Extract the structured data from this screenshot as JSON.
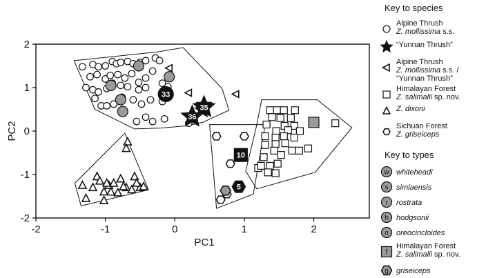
{
  "chart_data": {
    "type": "scatter",
    "xlabel": "PC1",
    "ylabel": "PC2",
    "xlim": [
      -2,
      2.8
    ],
    "ylim": [
      -2,
      2
    ],
    "xticks": [
      -2,
      -1,
      0,
      1,
      2
    ],
    "yticks": [
      -2,
      -1,
      0,
      1,
      2
    ],
    "grid": false,
    "legend_position": "right",
    "series": [
      {
        "name": "Alpine Thrush Z. mollissima s.s.",
        "marker": "circle",
        "points": [
          [
            -1.33,
            1.48
          ],
          [
            -1.18,
            1.53
          ],
          [
            -1.1,
            1.48
          ],
          [
            -1.0,
            1.5
          ],
          [
            -0.9,
            1.6
          ],
          [
            -0.84,
            1.55
          ],
          [
            -0.78,
            1.58
          ],
          [
            -0.68,
            1.6
          ],
          [
            -0.6,
            1.55
          ],
          [
            -0.5,
            1.58
          ],
          [
            -0.42,
            1.62
          ],
          [
            -0.28,
            1.68
          ],
          [
            -0.22,
            1.62
          ],
          [
            -1.22,
            1.25
          ],
          [
            -1.12,
            1.3
          ],
          [
            -1.0,
            1.2
          ],
          [
            -0.93,
            1.28
          ],
          [
            -0.82,
            1.3
          ],
          [
            -0.72,
            1.22
          ],
          [
            -0.62,
            1.32
          ],
          [
            -0.52,
            1.12
          ],
          [
            -0.42,
            1.22
          ],
          [
            -0.32,
            1.38
          ],
          [
            -0.18,
            1.1
          ],
          [
            -0.1,
            1.02
          ],
          [
            -1.28,
            1.0
          ],
          [
            -1.18,
            0.95
          ],
          [
            -1.1,
            0.9
          ],
          [
            -0.98,
            0.98
          ],
          [
            -0.9,
            1.1
          ],
          [
            -0.78,
            1.05
          ],
          [
            -0.68,
            1.02
          ],
          [
            -0.52,
            0.95
          ],
          [
            -0.42,
            1.0
          ],
          [
            -1.15,
            0.75
          ],
          [
            -1.06,
            0.58
          ],
          [
            -0.98,
            0.58
          ],
          [
            -0.88,
            0.62
          ],
          [
            -0.76,
            0.78
          ],
          [
            -0.6,
            0.72
          ],
          [
            -0.48,
            0.62
          ],
          [
            -0.35,
            0.72
          ],
          [
            -0.18,
            0.68
          ],
          [
            -0.55,
            0.22
          ],
          [
            -0.42,
            0.32
          ],
          [
            -0.32,
            0.22
          ],
          [
            -0.15,
            0.28
          ],
          [
            0.2,
            0.18
          ]
        ]
      },
      {
        "name": "Yunnan Thrush",
        "marker": "star",
        "points": [
          [
            0.4,
            0.48
          ],
          [
            0.24,
            0.35
          ],
          [
            0.42,
            0.6
          ]
        ]
      },
      {
        "name": "Alpine Thrush Z. mollissima s.s. / Yunnan Thrush",
        "marker": "triangle-left",
        "points": [
          [
            0.88,
            0.85
          ],
          [
            0.2,
            0.88
          ],
          [
            -0.08,
            1.45
          ]
        ]
      },
      {
        "name": "Himalayan Forest Z. salimalii sp. nov.",
        "marker": "square",
        "points": [
          [
            1.37,
            0.48
          ],
          [
            1.47,
            0.48
          ],
          [
            1.57,
            0.48
          ],
          [
            1.73,
            0.48
          ],
          [
            1.4,
            0.32
          ],
          [
            1.52,
            0.3
          ],
          [
            1.67,
            0.3
          ],
          [
            1.32,
            0.15
          ],
          [
            1.58,
            0.12
          ],
          [
            1.72,
            0.12
          ],
          [
            2.31,
            0.18
          ],
          [
            1.46,
            0.0
          ],
          [
            1.63,
            0.02
          ],
          [
            1.8,
            0.0
          ],
          [
            1.3,
            -0.12
          ],
          [
            1.45,
            -0.15
          ],
          [
            1.57,
            -0.12
          ],
          [
            1.72,
            -0.15
          ],
          [
            1.3,
            -0.32
          ],
          [
            1.45,
            -0.3
          ],
          [
            1.59,
            -0.28
          ],
          [
            1.79,
            -0.45
          ],
          [
            1.92,
            -0.4
          ],
          [
            1.43,
            -0.45
          ],
          [
            1.28,
            -0.6
          ],
          [
            1.53,
            -0.55
          ],
          [
            1.69,
            -0.45
          ],
          [
            1.37,
            -0.8
          ],
          [
            1.2,
            -0.85
          ],
          [
            1.34,
            -0.95
          ],
          [
            1.48,
            -0.75
          ],
          [
            1.24,
            -0.8
          ],
          [
            1.45,
            -0.97
          ]
        ]
      },
      {
        "name": "Z. dixoni",
        "marker": "triangle-up",
        "points": [
          [
            -0.68,
            -0.25
          ],
          [
            -0.7,
            -0.4
          ],
          [
            -1.33,
            -1.25
          ],
          [
            -1.28,
            -1.55
          ],
          [
            -1.18,
            -1.3
          ],
          [
            -1.12,
            -1.05
          ],
          [
            -1.08,
            -1.15
          ],
          [
            -1.02,
            -1.4
          ],
          [
            -0.95,
            -1.25
          ],
          [
            -0.88,
            -1.2
          ],
          [
            -0.78,
            -1.1
          ],
          [
            -0.7,
            -1.3
          ],
          [
            -0.58,
            -1.05
          ],
          [
            -0.5,
            -1.3
          ],
          [
            -1.02,
            -1.6
          ],
          [
            -0.82,
            -1.42
          ],
          [
            -0.62,
            -1.35
          ],
          [
            -0.98,
            -1.2
          ],
          [
            -0.92,
            -1.4
          ],
          [
            -0.74,
            -1.28
          ],
          [
            -0.55,
            -1.2
          ],
          [
            -0.45,
            -1.28
          ]
        ]
      },
      {
        "name": "Sichuan Forest Z. griseiceps",
        "marker": "hexagon",
        "points": [
          [
            0.6,
            -0.12
          ],
          [
            0.8,
            -0.75
          ],
          [
            1.0,
            -0.12
          ],
          [
            0.66,
            -1.58
          ],
          [
            0.75,
            -1.45
          ]
        ]
      }
    ],
    "numbered_markers": [
      {
        "label": "33",
        "marker": "circle",
        "x": -0.13,
        "y": 0.85
      },
      {
        "label": "35",
        "marker": "star",
        "x": 0.42,
        "y": 0.55
      },
      {
        "label": "36",
        "marker": "star",
        "x": 0.25,
        "y": 0.33
      },
      {
        "label": "10",
        "marker": "square",
        "x": 0.95,
        "y": -0.55
      },
      {
        "label": "5",
        "marker": "hexagon",
        "x": 0.92,
        "y": -1.28
      }
    ],
    "type_specimens": [
      {
        "label": "w",
        "marker": "circle",
        "x": -0.92,
        "y": 1.05
      },
      {
        "label": "s",
        "marker": "circle",
        "x": -0.78,
        "y": 0.72
      },
      {
        "label": "r",
        "marker": "circle",
        "x": -0.75,
        "y": 0.45
      },
      {
        "label": "h",
        "marker": "circle",
        "x": -0.52,
        "y": 1.5
      },
      {
        "label": "o",
        "marker": "circle",
        "x": -0.08,
        "y": 1.25
      },
      {
        "label": "f",
        "marker": "square",
        "x": 2.0,
        "y": 0.2
      },
      {
        "label": "g",
        "marker": "hexagon",
        "x": 0.73,
        "y": -1.37
      }
    ],
    "hulls": [
      {
        "group": "Alpine Thrush",
        "points": [
          [
            -1.45,
            1.62
          ],
          [
            -0.25,
            1.82
          ],
          [
            0.12,
            1.92
          ],
          [
            0.68,
            0.98
          ],
          [
            0.78,
            0.48
          ],
          [
            0.4,
            0.2
          ],
          [
            0.17,
            0.12
          ],
          [
            -0.2,
            0.07
          ],
          [
            -0.58,
            0.05
          ],
          [
            -1.15,
            0.5
          ]
        ]
      },
      {
        "group": "Z. dixoni",
        "points": [
          [
            -1.44,
            -1.2
          ],
          [
            -0.72,
            -0.05
          ],
          [
            -0.38,
            -1.35
          ],
          [
            -1.35,
            -1.72
          ]
        ]
      },
      {
        "group": "Sichuan Forest",
        "points": [
          [
            0.5,
            0.15
          ],
          [
            1.3,
            0.15
          ],
          [
            1.13,
            -1.45
          ],
          [
            0.6,
            -1.78
          ]
        ]
      },
      {
        "group": "Himalayan Forest",
        "points": [
          [
            1.25,
            0.72
          ],
          [
            2.05,
            0.72
          ],
          [
            2.55,
            0.08
          ],
          [
            2.02,
            -0.95
          ],
          [
            1.18,
            -1.33
          ],
          [
            1.02,
            -0.92
          ],
          [
            1.17,
            0.08
          ]
        ]
      }
    ],
    "legend": {
      "species_heading": "Key to species",
      "species": [
        {
          "marker": "circle",
          "line1": "Alpine Thrush",
          "line2_italic": "Z. mollissima",
          "line2_rest": " s.s."
        },
        {
          "marker": "star",
          "line1": "“Yunnan Thrush”",
          "line2_italic": "",
          "line2_rest": ""
        },
        {
          "marker": "triangle-left",
          "line1": "Alpine Thrush",
          "line2_italic": "Z. mollissima",
          "line2_rest": " s.s. /",
          "line3": "“Yunnan Thrush”"
        },
        {
          "marker": "square",
          "line1": "Himalayan Forest",
          "line2_italic": "Z. salimalii",
          "line2_rest": " sp. nov."
        },
        {
          "marker": "triangle-up",
          "line1": "Z. dixoni",
          "line1_italic": true,
          "line2_italic": "",
          "line2_rest": ""
        },
        {
          "marker": "hexagon",
          "line1": "Sichuan Forest",
          "line2_italic": "Z. griseiceps",
          "line2_rest": ""
        }
      ],
      "types_heading": "Key to types",
      "types": [
        {
          "marker": "circle",
          "letter": "w",
          "text": "whiteheadi"
        },
        {
          "marker": "circle",
          "letter": "s",
          "text": "simlaensis"
        },
        {
          "marker": "circle",
          "letter": "r",
          "text": "rostrata"
        },
        {
          "marker": "circle",
          "letter": "h",
          "text": "hodgsonii"
        },
        {
          "marker": "circle",
          "letter": "o",
          "text": "oreocincloides"
        },
        {
          "marker": "square",
          "letter": "f",
          "text": "Himalayan Forest",
          "line2_italic": "Z. salimalii",
          "line2_rest": " sp. nov."
        },
        {
          "marker": "hexagon",
          "letter": "g",
          "text": "griseiceps"
        }
      ]
    }
  }
}
